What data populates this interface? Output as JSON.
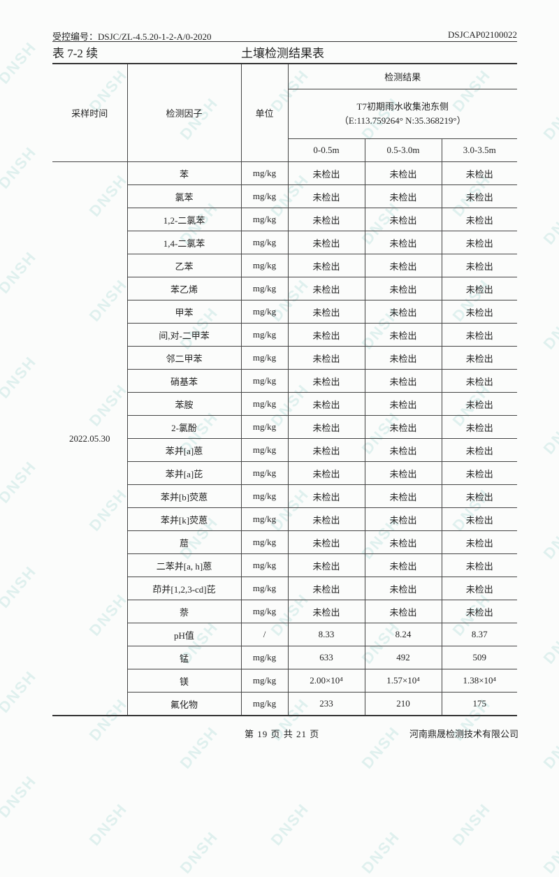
{
  "watermark": "DNSH",
  "header": {
    "control_no": "受控编号：DSJC/ZL-4.5.20-1-2-A/0-2020",
    "doc_no": "DSJCAP02100022"
  },
  "table_name": "表 7-2 续",
  "table_title": "土壤检测结果表",
  "columns": {
    "time": "采样时间",
    "factor": "检测因子",
    "unit": "单位",
    "results": "检测结果",
    "site": "T7初期雨水收集池东侧",
    "coords": "（E:113.759264° N:35.368219°）",
    "depths": [
      "0-0.5m",
      "0.5-3.0m",
      "3.0-3.5m"
    ]
  },
  "sample_date": "2022.05.30",
  "rows": [
    {
      "factor": "苯",
      "unit": "mg/kg",
      "v": [
        "未检出",
        "未检出",
        "未检出"
      ]
    },
    {
      "factor": "氯苯",
      "unit": "mg/kg",
      "v": [
        "未检出",
        "未检出",
        "未检出"
      ]
    },
    {
      "factor": "1,2-二氯苯",
      "unit": "mg/kg",
      "v": [
        "未检出",
        "未检出",
        "未检出"
      ]
    },
    {
      "factor": "1,4-二氯苯",
      "unit": "mg/kg",
      "v": [
        "未检出",
        "未检出",
        "未检出"
      ]
    },
    {
      "factor": "乙苯",
      "unit": "mg/kg",
      "v": [
        "未检出",
        "未检出",
        "未检出"
      ]
    },
    {
      "factor": "苯乙烯",
      "unit": "mg/kg",
      "v": [
        "未检出",
        "未检出",
        "未检出"
      ]
    },
    {
      "factor": "甲苯",
      "unit": "mg/kg",
      "v": [
        "未检出",
        "未检出",
        "未检出"
      ]
    },
    {
      "factor": "间,对-二甲苯",
      "unit": "mg/kg",
      "v": [
        "未检出",
        "未检出",
        "未检出"
      ]
    },
    {
      "factor": "邻二甲苯",
      "unit": "mg/kg",
      "v": [
        "未检出",
        "未检出",
        "未检出"
      ]
    },
    {
      "factor": "硝基苯",
      "unit": "mg/kg",
      "v": [
        "未检出",
        "未检出",
        "未检出"
      ]
    },
    {
      "factor": "苯胺",
      "unit": "mg/kg",
      "v": [
        "未检出",
        "未检出",
        "未检出"
      ]
    },
    {
      "factor": "2-氯酚",
      "unit": "mg/kg",
      "v": [
        "未检出",
        "未检出",
        "未检出"
      ]
    },
    {
      "factor": "苯并[a]蒽",
      "unit": "mg/kg",
      "v": [
        "未检出",
        "未检出",
        "未检出"
      ]
    },
    {
      "factor": "苯并[a]芘",
      "unit": "mg/kg",
      "v": [
        "未检出",
        "未检出",
        "未检出"
      ]
    },
    {
      "factor": "苯并[b]荧蒽",
      "unit": "mg/kg",
      "v": [
        "未检出",
        "未检出",
        "未检出"
      ]
    },
    {
      "factor": "苯并[k]荧蒽",
      "unit": "mg/kg",
      "v": [
        "未检出",
        "未检出",
        "未检出"
      ]
    },
    {
      "factor": "䓛",
      "unit": "mg/kg",
      "v": [
        "未检出",
        "未检出",
        "未检出"
      ]
    },
    {
      "factor": "二苯并[a, h]蒽",
      "unit": "mg/kg",
      "v": [
        "未检出",
        "未检出",
        "未检出"
      ]
    },
    {
      "factor": "茚并[1,2,3-cd]芘",
      "unit": "mg/kg",
      "v": [
        "未检出",
        "未检出",
        "未检出"
      ]
    },
    {
      "factor": "萘",
      "unit": "mg/kg",
      "v": [
        "未检出",
        "未检出",
        "未检出"
      ]
    },
    {
      "factor": "pH值",
      "unit": "/",
      "v": [
        "8.33",
        "8.24",
        "8.37"
      ]
    },
    {
      "factor": "锰",
      "unit": "mg/kg",
      "v": [
        "633",
        "492",
        "509"
      ]
    },
    {
      "factor": "镁",
      "unit": "mg/kg",
      "v": [
        "2.00×10⁴",
        "1.57×10⁴",
        "1.38×10⁴"
      ]
    },
    {
      "factor": "氟化物",
      "unit": "mg/kg",
      "v": [
        "233",
        "210",
        "175"
      ]
    }
  ],
  "footer": {
    "page": "第 19 页 共 21 页",
    "company": "河南鼎晟检测技术有限公司"
  }
}
